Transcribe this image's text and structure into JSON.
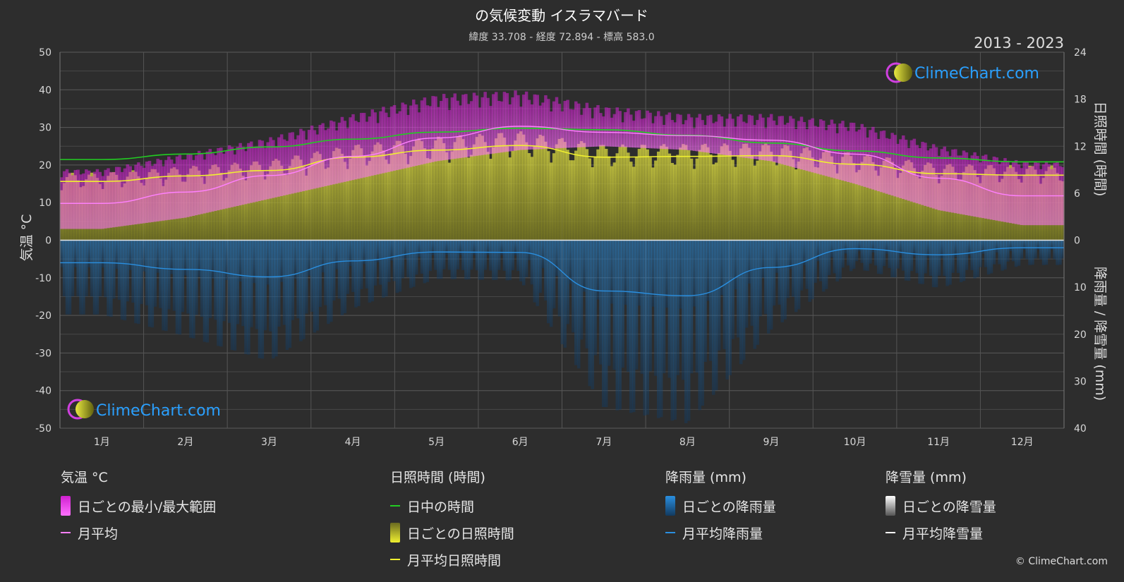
{
  "title": "の気候変動 イスラマバード",
  "subtitle": "緯度 33.708 - 経度 72.894 - 標高 583.0",
  "period": "2013 - 2023",
  "watermark": "ClimeChart.com",
  "copyright": "© ClimeChart.com",
  "colors": {
    "background": "#2d2d2d",
    "temp_range": "#e020e0",
    "temp_avg": "#ff80ff",
    "daylight": "#22cc22",
    "sunshine": "#b8b830",
    "sunshine_avg": "#f0f030",
    "rain": "#1e6bb0",
    "rain_avg": "#2a8fe0",
    "snow_avg": "#ffffff",
    "watermark": "#2aa0ff"
  },
  "legend": {
    "temp": {
      "heading": "気温 °C",
      "range": "日ごとの最小/最大範囲",
      "avg": "月平均"
    },
    "sun": {
      "heading": "日照時間 (時間)",
      "daylight": "日中の時間",
      "daily": "日ごとの日照時間",
      "avg": "月平均日照時間"
    },
    "rain": {
      "heading": "降雨量 (mm)",
      "daily": "日ごとの降雨量",
      "avg": "月平均降雨量"
    },
    "snow": {
      "heading": "降雪量 (mm)",
      "daily": "日ごとの降雪量",
      "avg": "月平均降雪量"
    }
  },
  "chart_data": {
    "type": "line",
    "title": "の気候変動 イスラマバード",
    "subtitle": "緯度 33.708 - 経度 72.894 - 標高 583.0",
    "period": "2013 - 2023",
    "categories": [
      "1月",
      "2月",
      "3月",
      "4月",
      "5月",
      "6月",
      "7月",
      "8月",
      "9月",
      "10月",
      "11月",
      "12月"
    ],
    "y_left": {
      "label": "気温 °C",
      "range": [
        -50,
        50
      ],
      "ticks": [
        50,
        40,
        30,
        20,
        10,
        0,
        -10,
        -20,
        -30,
        -40,
        -50
      ]
    },
    "y_right_top": {
      "label": "日照時間 (時間)",
      "range": [
        0,
        24
      ],
      "ticks": [
        24,
        18,
        12,
        6,
        0
      ]
    },
    "y_right_bottom": {
      "label": "降雨量 / 降雪量 (mm)",
      "range": [
        0,
        40
      ],
      "ticks": [
        0,
        10,
        20,
        30,
        40
      ]
    },
    "grid": true,
    "series": [
      {
        "name": "月平均",
        "axis": "temp",
        "values": [
          9.8,
          12.8,
          17.2,
          22.3,
          27.2,
          30.3,
          28.7,
          27.8,
          26.6,
          22.9,
          16.5,
          11.8
        ]
      },
      {
        "name": "日中の時間",
        "axis": "sun",
        "values": [
          10.3,
          11.0,
          11.9,
          12.9,
          13.8,
          14.3,
          14.1,
          13.4,
          12.4,
          11.4,
          10.5,
          10.0
        ]
      },
      {
        "name": "月平均日照時間",
        "axis": "sun",
        "values": [
          7.5,
          8.2,
          8.9,
          10.6,
          11.5,
          12.1,
          10.6,
          10.7,
          10.8,
          9.7,
          8.5,
          8.3
        ]
      },
      {
        "name": "月平均降雨量",
        "axis": "precip",
        "values": [
          4.8,
          6.2,
          7.8,
          4.4,
          2.5,
          2.6,
          10.8,
          11.8,
          5.8,
          1.8,
          3.1,
          1.6
        ]
      },
      {
        "name": "月平均降雪量",
        "axis": "precip",
        "values": [
          0,
          0,
          0,
          0,
          0,
          0,
          0,
          0,
          0,
          0,
          0,
          0
        ]
      }
    ],
    "temp_range": {
      "name": "日ごとの最小/最大範囲",
      "min": [
        3,
        6,
        11,
        16,
        21,
        24,
        25,
        24,
        21,
        15,
        8,
        4
      ],
      "max": [
        18,
        22,
        26,
        32,
        37,
        38,
        34,
        32,
        32,
        30,
        24,
        20
      ]
    }
  }
}
